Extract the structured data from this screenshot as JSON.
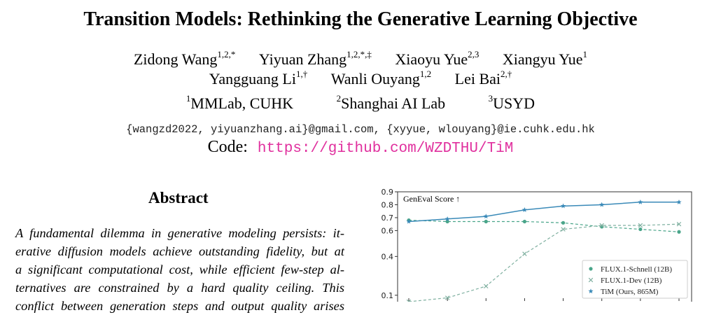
{
  "paper": {
    "title": "Transition Models: Rethinking the Generative Learning Objective",
    "authors_line1": [
      {
        "name": "Zidong Wang",
        "sup": "1,2,*"
      },
      {
        "name": "Yiyuan Zhang",
        "sup": "1,2,*,‡"
      },
      {
        "name": "Xiaoyu Yue",
        "sup": "2,3"
      },
      {
        "name": "Xiangyu Yue",
        "sup": "1"
      }
    ],
    "authors_line2": [
      {
        "name": "Yangguang Li",
        "sup": "1,†"
      },
      {
        "name": "Wanli Ouyang",
        "sup": "1,2"
      },
      {
        "name": "Lei Bai",
        "sup": "2,†"
      }
    ],
    "affiliations": [
      {
        "sup": "1",
        "name": "MMLab, CUHK"
      },
      {
        "sup": "2",
        "name": "Shanghai AI Lab"
      },
      {
        "sup": "3",
        "name": "USYD"
      }
    ],
    "emails": "{wangzd2022, yiyuanzhang.ai}@gmail.com, {xyyue, wlouyang}@ie.cuhk.edu.hk",
    "code_label": "Code:",
    "code_url": "https://github.com/WZDTHU/TiM",
    "abstract_heading": "Abstract",
    "abstract_lines": [
      "A fundamental dilemma in generative modeling persists: it-",
      "erative diffusion models achieve outstanding fidelity, but at",
      "a significant computational cost, while efficient few-step al-",
      "ternatives are constrained by a hard quality ceiling. This",
      "conflict between generation steps and output quality arises"
    ]
  },
  "chart_data": {
    "type": "line",
    "title": "GenEval Score ↑",
    "ylim": [
      0.05,
      0.9
    ],
    "yticks": [
      0.1,
      0.4,
      0.6,
      0.7,
      0.8,
      0.9
    ],
    "x": [
      1,
      2,
      3,
      4,
      5,
      6,
      7,
      8
    ],
    "legend_position": "bottom-right",
    "series": [
      {
        "name": "FLUX.1-Schnell (12B)",
        "marker": "circle",
        "color": "#4aa58a",
        "dashed": true,
        "values": [
          0.68,
          0.67,
          0.67,
          0.67,
          0.66,
          0.63,
          0.61,
          0.59
        ]
      },
      {
        "name": "FLUX.1-Dev (12B)",
        "marker": "x",
        "color": "#7fb0a0",
        "dashed": true,
        "values": [
          0.05,
          0.08,
          0.17,
          0.42,
          0.61,
          0.64,
          0.64,
          0.65
        ]
      },
      {
        "name": "TiM (Ours, 865M)",
        "marker": "star",
        "color": "#3a8ab8",
        "dashed": false,
        "values": [
          0.67,
          0.69,
          0.71,
          0.76,
          0.79,
          0.8,
          0.82,
          0.82
        ]
      }
    ]
  }
}
